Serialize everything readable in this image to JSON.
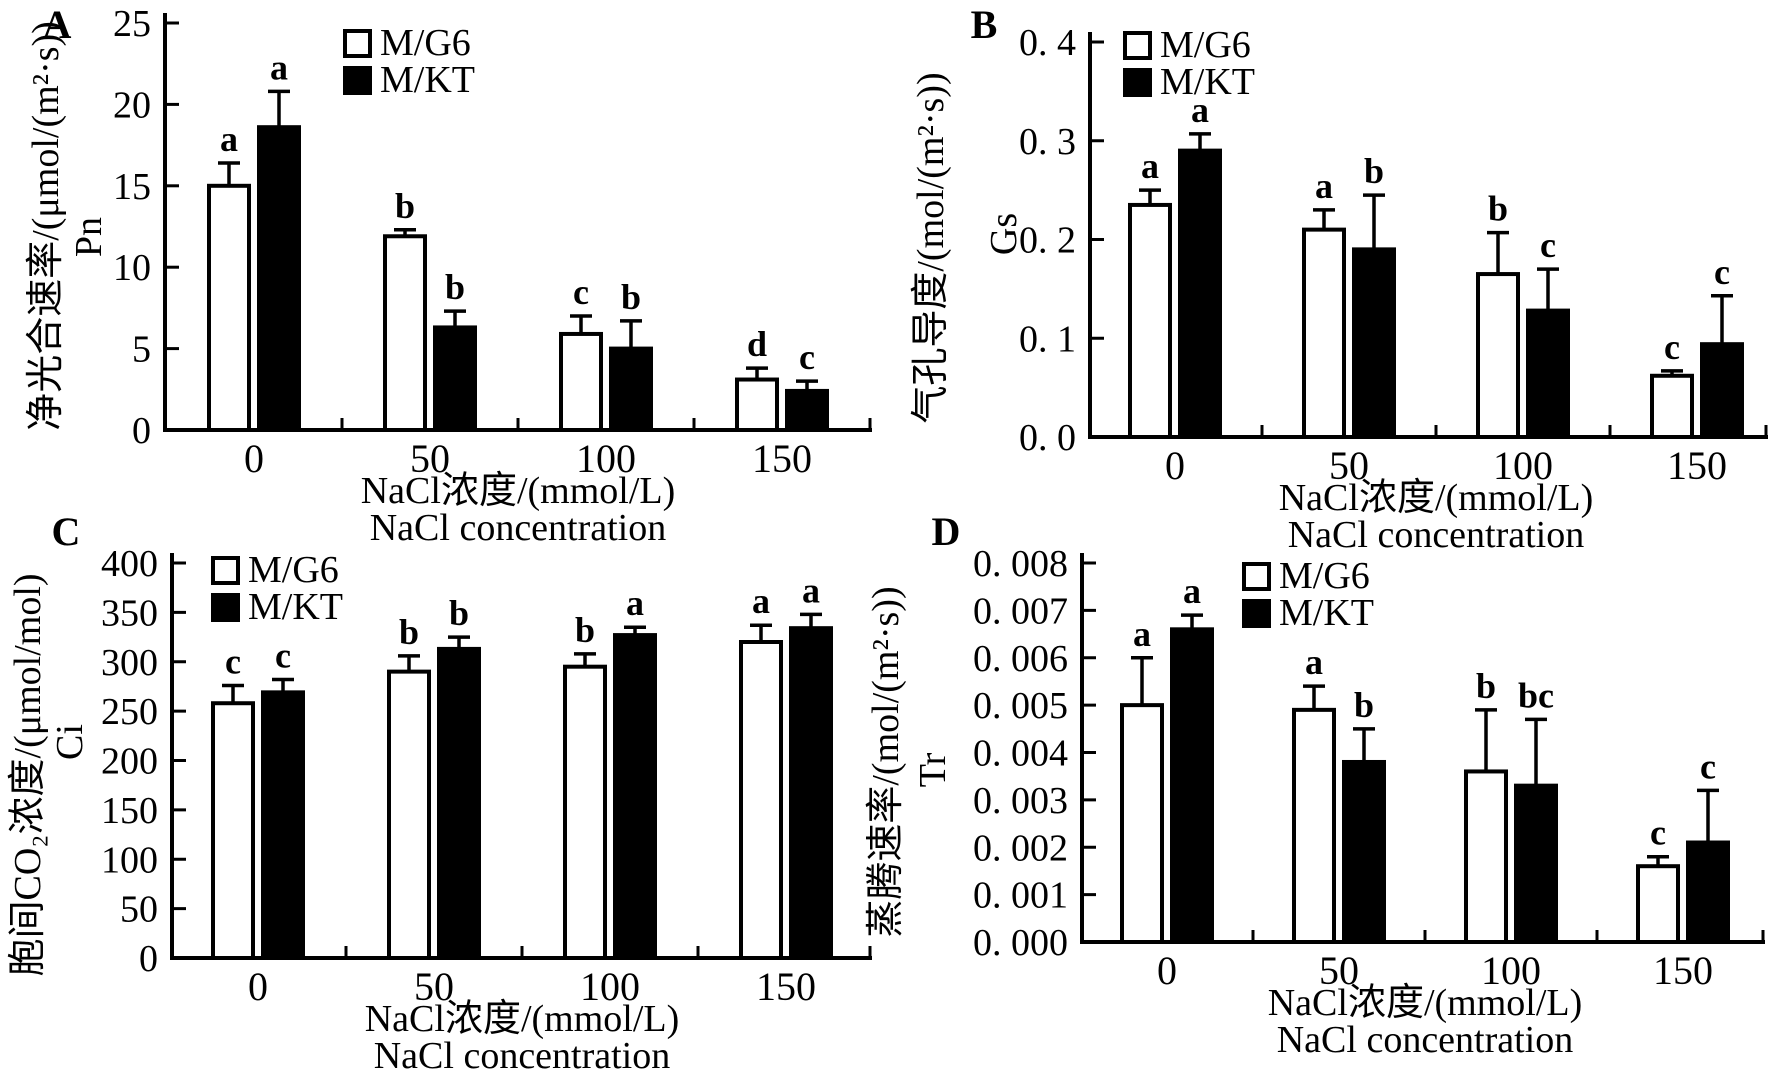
{
  "figure": {
    "background": "#ffffff",
    "ink": "#000000",
    "bar_open_fill": "#ffffff",
    "bar_solid_fill": "#000000",
    "legend_labels": [
      "M/G6",
      "M/KT"
    ],
    "xlabel_zh": "NaCl浓度/(mmol/L)",
    "xlabel_en": "NaCl concentration"
  },
  "chart_data": [
    {
      "panel": "A",
      "type": "bar",
      "ylabel": "净光合速率/(μmol/(m²·s))",
      "ylabel_short": "Pn",
      "xlabel": "NaCl浓度/(mmol/L)",
      "xlabel_en": "NaCl concentration",
      "categories": [
        "0",
        "50",
        "100",
        "150"
      ],
      "ylim": [
        0,
        25
      ],
      "yticks": [
        0,
        5,
        10,
        15,
        20,
        25
      ],
      "ytick_labels": [
        "0",
        "5",
        "10",
        "15",
        "20",
        "25"
      ],
      "grid": false,
      "legend_position": "inside-top-left",
      "series": [
        {
          "name": "M/G6",
          "fill": "#ffffff",
          "values": [
            15.0,
            11.9,
            5.9,
            3.1
          ],
          "errors": [
            1.4,
            0.4,
            1.1,
            0.7
          ],
          "sig_letters": [
            "a",
            "b",
            "c",
            "d"
          ]
        },
        {
          "name": "M/KT",
          "fill": "#000000",
          "values": [
            18.6,
            6.3,
            5.0,
            2.4
          ],
          "errors": [
            2.2,
            1.0,
            1.7,
            0.6
          ],
          "sig_letters": [
            "a",
            "b",
            "b",
            "c"
          ]
        }
      ]
    },
    {
      "panel": "B",
      "type": "bar",
      "ylabel": "气孔导度/(mol/(m²·s))",
      "ylabel_short": "Gs",
      "xlabel": "NaCl浓度/(mmol/L)",
      "xlabel_en": "NaCl concentration",
      "categories": [
        "0",
        "50",
        "100",
        "150"
      ],
      "ylim": [
        0,
        0.4
      ],
      "yticks": [
        0,
        0.1,
        0.2,
        0.3,
        0.4
      ],
      "ytick_labels": [
        "0. 0",
        "0. 1",
        "0. 2",
        "0. 3",
        "0. 4"
      ],
      "grid": false,
      "legend_position": "inside-top-left",
      "series": [
        {
          "name": "M/G6",
          "fill": "#ffffff",
          "values": [
            0.235,
            0.21,
            0.165,
            0.062
          ],
          "errors": [
            0.015,
            0.02,
            0.042,
            0.005
          ],
          "sig_letters": [
            "a",
            "a",
            "b",
            "c"
          ]
        },
        {
          "name": "M/KT",
          "fill": "#000000",
          "values": [
            0.29,
            0.19,
            0.128,
            0.094
          ],
          "errors": [
            0.017,
            0.055,
            0.042,
            0.049
          ],
          "sig_letters": [
            "a",
            "b",
            "c",
            "c"
          ]
        }
      ]
    },
    {
      "panel": "C",
      "type": "bar",
      "ylabel": "胞间CO₂浓度/(μmol/mol)",
      "ylabel_short": "Ci",
      "xlabel": "NaCl浓度/(mmol/L)",
      "xlabel_en": "NaCl concentration",
      "categories": [
        "0",
        "50",
        "100",
        "150"
      ],
      "ylim": [
        0,
        400
      ],
      "yticks": [
        0,
        50,
        100,
        150,
        200,
        250,
        300,
        350,
        400
      ],
      "ytick_labels": [
        "0",
        "50",
        "100",
        "150",
        "200",
        "250",
        "300",
        "350",
        "400"
      ],
      "grid": false,
      "legend_position": "inside-top-left",
      "series": [
        {
          "name": "M/G6",
          "fill": "#ffffff",
          "values": [
            258,
            290,
            295,
            320
          ],
          "errors": [
            18,
            16,
            13,
            17
          ],
          "sig_letters": [
            "c",
            "b",
            "b",
            "a"
          ]
        },
        {
          "name": "M/KT",
          "fill": "#000000",
          "values": [
            269,
            313,
            327,
            334
          ],
          "errors": [
            13,
            12,
            8,
            14
          ],
          "sig_letters": [
            "c",
            "b",
            "a",
            "a"
          ]
        }
      ]
    },
    {
      "panel": "D",
      "type": "bar",
      "ylabel": "蒸腾速率/(mol/(m²·s))",
      "ylabel_short": "Tr",
      "xlabel": "NaCl浓度/(mmol/L)",
      "xlabel_en": "NaCl concentration",
      "categories": [
        "0",
        "50",
        "100",
        "150"
      ],
      "ylim": [
        0,
        0.008
      ],
      "yticks": [
        0,
        0.001,
        0.002,
        0.003,
        0.004,
        0.005,
        0.006,
        0.007,
        0.008
      ],
      "ytick_labels": [
        "0. 000",
        "0. 001",
        "0. 002",
        "0. 003",
        "0. 004",
        "0. 005",
        "0. 006",
        "0. 007",
        "0. 008"
      ],
      "grid": false,
      "legend_position": "inside-top-right",
      "series": [
        {
          "name": "M/G6",
          "fill": "#ffffff",
          "values": [
            0.005,
            0.0049,
            0.0036,
            0.0016
          ],
          "errors": [
            0.001,
            0.0005,
            0.0013,
            0.0002
          ],
          "sig_letters": [
            "a",
            "a",
            "b",
            "c"
          ]
        },
        {
          "name": "M/KT",
          "fill": "#000000",
          "values": [
            0.0066,
            0.0038,
            0.0033,
            0.0021
          ],
          "errors": [
            0.0003,
            0.0007,
            0.0014,
            0.0011
          ],
          "sig_letters": [
            "a",
            "b",
            "bc",
            "c"
          ]
        }
      ]
    }
  ]
}
